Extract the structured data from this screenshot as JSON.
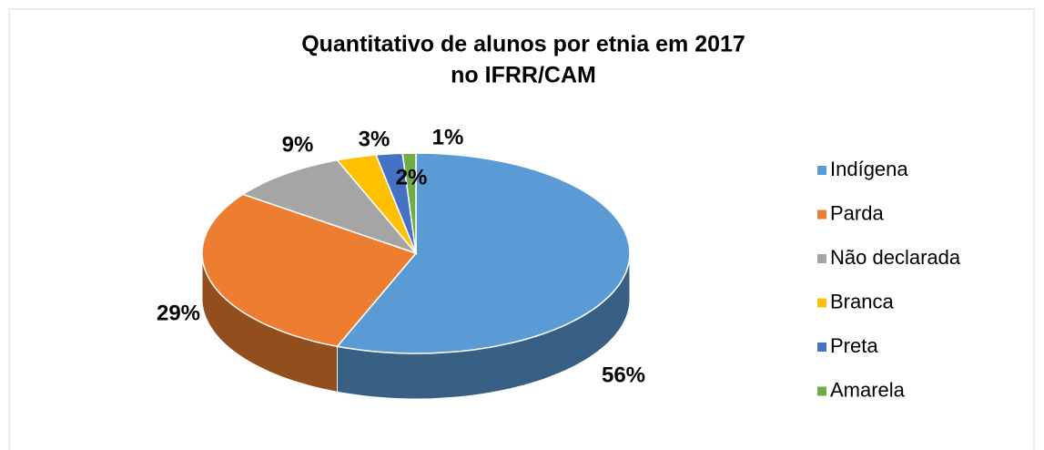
{
  "chart_data": {
    "type": "pie3d",
    "title": [
      "Quantitativo de alunos por etnia em 2017",
      "no IFRR/CAM"
    ],
    "categories": [
      "Indígena",
      "Parda",
      "Não declarada",
      "Branca",
      "Preta",
      "Amarela"
    ],
    "values": [
      56,
      29,
      9,
      3,
      2,
      1
    ],
    "value_labels": [
      "56%",
      "29%",
      "9%",
      "3%",
      "2%",
      "1%"
    ],
    "colors": [
      "#5b9bd5",
      "#ed7d31",
      "#a5a5a5",
      "#ffc000",
      "#4472c4",
      "#70ad47"
    ],
    "legend": "right"
  }
}
